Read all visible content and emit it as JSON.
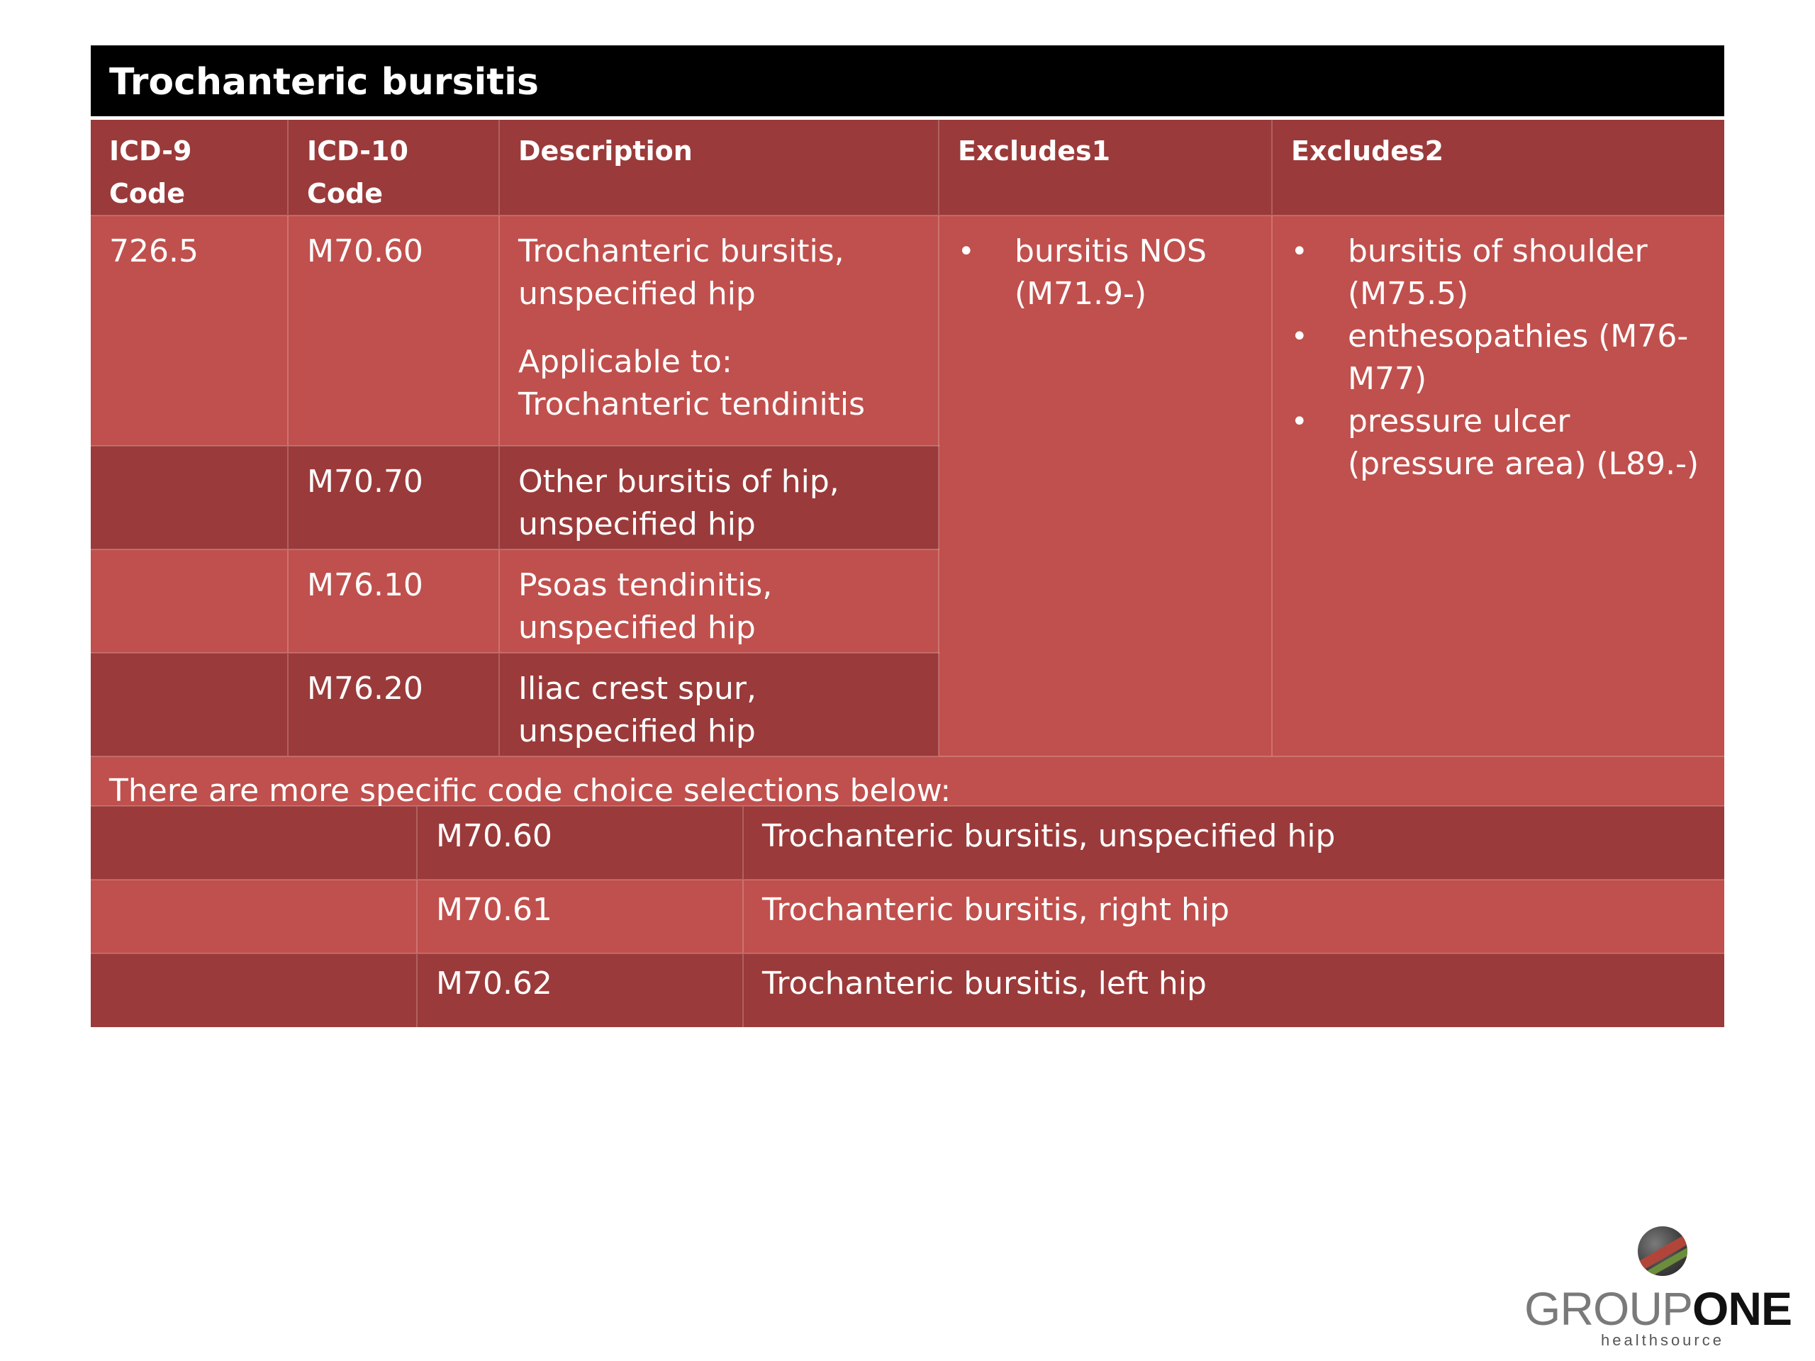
{
  "title": "Trochanteric bursitis",
  "headers": {
    "icd9": "ICD-9 Code",
    "icd10": "ICD-10 Code",
    "description": "Description",
    "excludes1": "Excludes1",
    "excludes2": "Excludes2"
  },
  "rows": [
    {
      "icd9": "726.5",
      "icd10": "M70.60",
      "description": "Trochanteric bursitis, unspecified hip",
      "applicable_label": "Applicable to:",
      "applicable_value": "Trochanteric tendinitis"
    },
    {
      "icd9": "",
      "icd10": "M70.70",
      "description": "Other bursitis of hip, unspecified hip"
    },
    {
      "icd9": "",
      "icd10": "M76.10",
      "description": "Psoas tendinitis, unspecified hip"
    },
    {
      "icd9": "",
      "icd10": "M76.20",
      "description": "Iliac crest spur, unspecified hip"
    }
  ],
  "excludes1": [
    "bursitis NOS (M71.9-)"
  ],
  "excludes2": [
    "bursitis of shoulder (M75.5)",
    "enthesopathies (M76-M77)",
    "pressure ulcer (pressure area) (L89.-)"
  ],
  "note": "There are more specific code choice selections below:",
  "specific_codes": [
    {
      "code": "M70.60",
      "description": "Trochanteric bursitis, unspecified hip"
    },
    {
      "code": "M70.61",
      "description": "Trochanteric bursitis, right  hip"
    },
    {
      "code": "M70.62",
      "description": "Trochanteric bursitis, left hip"
    }
  ],
  "logo": {
    "word_light": "GROUP",
    "word_bold": "ONE",
    "subtitle": "healthsource",
    "icon": "globe-swoosh-icon"
  },
  "colors": {
    "title_bg": "#000000",
    "dark_row": "#9b3a3a",
    "light_row": "#c0504d",
    "text": "#ffffff"
  }
}
